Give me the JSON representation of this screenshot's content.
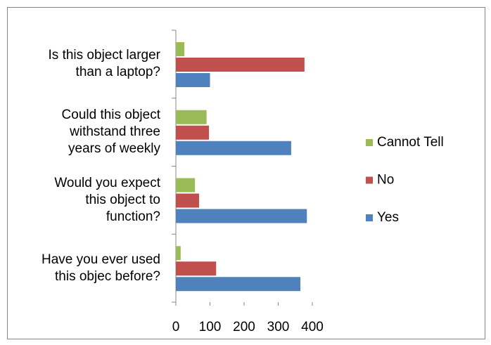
{
  "chart_data": {
    "type": "hbar",
    "categories": [
      "Is this object larger than a laptop?",
      "Could this object withstand three years of weekly",
      "Would you expect this object to function?",
      "Have you ever used this objec before?"
    ],
    "series": [
      {
        "name": "Yes",
        "color": "#4f81bd",
        "values": [
          100,
          338,
          384,
          365
        ]
      },
      {
        "name": "No",
        "color": "#c0504d",
        "values": [
          377,
          97,
          68,
          118
        ]
      },
      {
        "name": "Cannot Tell",
        "color": "#9bbb59",
        "values": [
          25,
          90,
          56,
          14
        ]
      }
    ],
    "xlim": [
      0,
      400
    ],
    "xticks": [
      0,
      100,
      200,
      300,
      400
    ],
    "legend": "right"
  }
}
